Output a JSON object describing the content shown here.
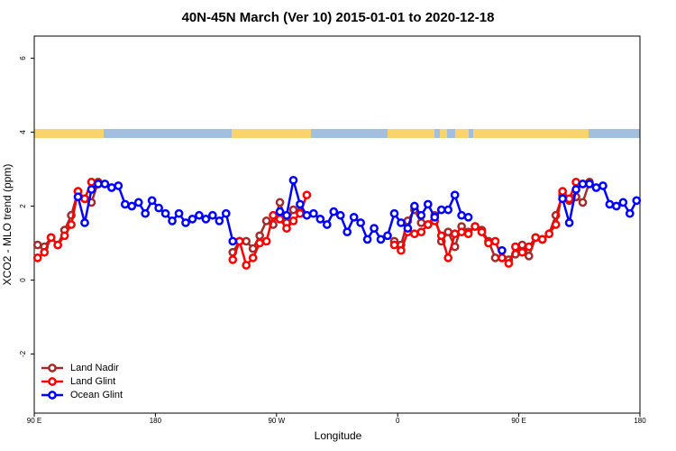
{
  "chart_data": {
    "type": "line",
    "title": "40N-45N March (Ver 10)   2015-01-01 to 2020-12-18",
    "xlabel": "Longitude",
    "ylabel": "XCO2 - MLO trend (ppm)",
    "xlim": [
      90,
      540
    ],
    "ylim": [
      -3.6,
      6.6
    ],
    "xticks": [
      {
        "value": 90,
        "label": "90 E"
      },
      180,
      {
        "value": 270,
        "label": "90 W"
      },
      {
        "value": 360,
        "label": "0"
      },
      {
        "value": 450,
        "label": "90 E"
      },
      {
        "value": 540,
        "label": "180"
      }
    ],
    "yticks": [
      -2,
      0,
      2,
      4,
      6
    ],
    "legend": "bottom-left",
    "series": [
      {
        "name": "Land Nadir",
        "color": "#a52a2a",
        "x": [
          92.5,
          97.5,
          102.5,
          107.5,
          112.5,
          117.5,
          122.5,
          127.5,
          132.5,
          137.5,
          null,
          237.5,
          242.5,
          247.5,
          252.5,
          257.5,
          262.5,
          267.5,
          272.5,
          277.5,
          282.5,
          287.5,
          null,
          357.5,
          362.5,
          367.5,
          372.5,
          377.5,
          382.5,
          387.5,
          392.5,
          397.5,
          402.5,
          407.5,
          412.5,
          417.5,
          422.5,
          427.5,
          432.5,
          437.5,
          442.5,
          447.5,
          452.5,
          457.5,
          462.5,
          467.5,
          472.5,
          477.5,
          482.5,
          487.5,
          492.5,
          497.5,
          502.5
        ],
        "values": [
          0.95,
          0.9,
          1.15,
          0.95,
          1.35,
          1.75,
          2.4,
          2.2,
          2.1,
          2.65,
          null,
          0.75,
          1.05,
          1.05,
          0.85,
          1.2,
          1.6,
          1.5,
          2.1,
          1.55,
          1.9,
          1.85,
          null,
          1.05,
          0.95,
          1.6,
          1.9,
          1.55,
          1.5,
          1.75,
          1.05,
          1.3,
          0.9,
          1.45,
          1.3,
          1.45,
          1.35,
          1.05,
          0.6,
          0.6,
          0.55,
          0.7,
          0.95,
          0.65,
          1.15,
          1.1,
          1.25,
          1.75,
          2.3,
          2.15,
          2.25,
          2.1,
          2.65
        ]
      },
      {
        "name": "Land Glint",
        "color": "#ff0000",
        "x": [
          92.5,
          97.5,
          102.5,
          107.5,
          112.5,
          117.5,
          122.5,
          127.5,
          132.5,
          137.5,
          null,
          237.5,
          242.5,
          247.5,
          252.5,
          257.5,
          262.5,
          267.5,
          272.5,
          277.5,
          282.5,
          287.5,
          292.5,
          null,
          357.5,
          362.5,
          367.5,
          372.5,
          377.5,
          382.5,
          387.5,
          392.5,
          397.5,
          402.5,
          407.5,
          412.5,
          417.5,
          422.5,
          427.5,
          432.5,
          437.5,
          442.5,
          447.5,
          452.5,
          457.5,
          462.5,
          467.5,
          472.5,
          477.5,
          482.5,
          487.5,
          492.5,
          497.5
        ],
        "values": [
          0.6,
          0.75,
          1.15,
          0.95,
          1.2,
          1.5,
          2.4,
          2.2,
          2.65,
          2.6,
          null,
          0.55,
          1.05,
          0.4,
          0.6,
          1.0,
          1.05,
          1.75,
          1.65,
          1.4,
          1.6,
          1.8,
          2.3,
          null,
          0.95,
          0.8,
          1.3,
          1.25,
          1.3,
          1.5,
          1.6,
          1.2,
          0.6,
          1.25,
          1.3,
          1.25,
          1.45,
          1.3,
          1.0,
          1.05,
          0.6,
          0.45,
          0.9,
          0.75,
          0.9,
          1.15,
          1.1,
          1.25,
          1.5,
          2.4,
          2.2,
          2.65,
          2.6
        ]
      },
      {
        "name": "Ocean Glint",
        "color": "#0000ff",
        "x": [
          122.5,
          127.5,
          132.5,
          137.5,
          142.5,
          147.5,
          152.5,
          157.5,
          162.5,
          167.5,
          172.5,
          177.5,
          182.5,
          187.5,
          192.5,
          197.5,
          202.5,
          207.5,
          212.5,
          217.5,
          222.5,
          227.5,
          232.5,
          237.5,
          null,
          272.5,
          277.5,
          282.5,
          287.5,
          292.5,
          297.5,
          302.5,
          307.5,
          312.5,
          317.5,
          322.5,
          327.5,
          332.5,
          337.5,
          342.5,
          347.5,
          352.5,
          357.5,
          362.5,
          367.5,
          372.5,
          377.5,
          382.5,
          387.5,
          392.5,
          397.5,
          402.5,
          407.5,
          412.5,
          null,
          437.5,
          null,
          482.5,
          487.5,
          492.5,
          497.5,
          502.5,
          507.5,
          512.5,
          517.5,
          522.5,
          527.5,
          532.5,
          537.5
        ],
        "values": [
          2.25,
          1.55,
          2.45,
          2.6,
          2.6,
          2.5,
          2.55,
          2.05,
          2.0,
          2.1,
          1.8,
          2.15,
          1.95,
          1.8,
          1.6,
          1.8,
          1.55,
          1.65,
          1.75,
          1.65,
          1.75,
          1.6,
          1.8,
          1.05,
          null,
          1.85,
          1.75,
          2.7,
          2.05,
          1.75,
          1.8,
          1.65,
          1.5,
          1.85,
          1.75,
          1.3,
          1.7,
          1.55,
          1.1,
          1.4,
          1.1,
          1.2,
          1.8,
          1.55,
          1.4,
          2.0,
          1.75,
          2.05,
          1.7,
          1.9,
          1.9,
          2.3,
          1.75,
          1.7,
          null,
          0.8,
          null,
          2.2,
          1.55,
          2.45,
          2.6,
          2.6,
          2.5,
          2.55,
          2.05,
          2.0,
          2.1,
          1.8,
          2.15
        ]
      }
    ]
  }
}
